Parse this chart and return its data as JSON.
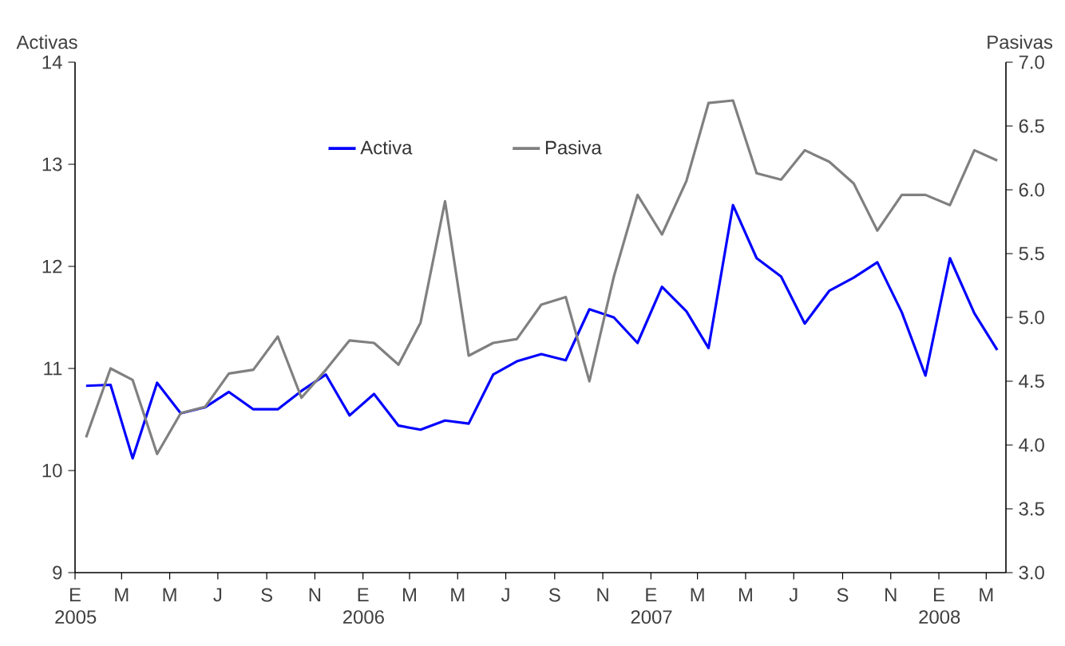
{
  "chart_data": {
    "type": "line",
    "ylabel": "Activas",
    "y2label": "Pasivas",
    "x": [
      "2005-01-15",
      "2005-02-15",
      "2005-03-15",
      "2005-04-15",
      "2005-05-15",
      "2005-06-15",
      "2005-07-15",
      "2005-08-15",
      "2005-09-15",
      "2005-10-15",
      "2005-11-15",
      "2005-12-15",
      "2006-01-15",
      "2006-02-15",
      "2006-03-15",
      "2006-04-15",
      "2006-05-15",
      "2006-06-15",
      "2006-07-15",
      "2006-08-15",
      "2006-09-15",
      "2006-10-15",
      "2006-11-15",
      "2006-12-15",
      "2007-01-15",
      "2007-02-15",
      "2007-03-15",
      "2007-04-15",
      "2007-05-15",
      "2007-06-15",
      "2007-07-15",
      "2007-08-15",
      "2007-09-15",
      "2007-10-15",
      "2007-11-15",
      "2007-12-15",
      "2008-01-15",
      "2008-02-15",
      "2008-03-15"
    ],
    "series": [
      {
        "name": "Activa",
        "color": "#0000ff",
        "values": [
          10.83,
          10.84,
          10.12,
          10.86,
          10.56,
          10.62,
          10.77,
          10.6,
          10.6,
          10.78,
          10.94,
          10.54,
          10.75,
          10.44,
          10.4,
          10.49,
          10.46,
          10.94,
          11.07,
          11.14,
          11.08,
          11.58,
          11.5,
          11.25,
          11.8,
          11.56,
          11.2,
          12.6,
          12.08,
          11.9,
          11.44,
          11.76,
          11.89,
          12.04,
          11.55,
          10.93,
          12.08,
          11.54,
          11.18
        ]
      },
      {
        "name": "Pasiva",
        "color": "#808080",
        "axis": "y2",
        "values": [
          4.06,
          4.6,
          4.51,
          3.93,
          4.25,
          4.3,
          4.56,
          4.59,
          4.85,
          4.37,
          4.59,
          4.82,
          4.8,
          4.63,
          4.96,
          5.91,
          4.7,
          4.8,
          4.83,
          5.1,
          5.16,
          4.5,
          5.32,
          5.96,
          5.65,
          6.07,
          6.68,
          6.7,
          6.13,
          6.08,
          6.31,
          6.22,
          6.05,
          5.68,
          5.96,
          5.96,
          5.88,
          6.31,
          6.23
        ]
      }
    ],
    "xlim": [
      "2005-01-01",
      "2008-03-26"
    ],
    "xticks": [
      {
        "value": "2005-01-01",
        "label": "E 2005"
      },
      {
        "value": "2005-03-01",
        "label": "M"
      },
      {
        "value": "2005-05-01",
        "label": "M"
      },
      {
        "value": "2005-07-01",
        "label": "J"
      },
      {
        "value": "2005-09-01",
        "label": "S"
      },
      {
        "value": "2005-11-01",
        "label": "N"
      },
      {
        "value": "2006-01-01",
        "label": "E 2006"
      },
      {
        "value": "2006-03-01",
        "label": "M"
      },
      {
        "value": "2006-05-01",
        "label": "M"
      },
      {
        "value": "2006-07-01",
        "label": "J"
      },
      {
        "value": "2006-09-01",
        "label": "S"
      },
      {
        "value": "2006-11-01",
        "label": "N"
      },
      {
        "value": "2007-01-01",
        "label": "E 2007"
      },
      {
        "value": "2007-03-01",
        "label": "M"
      },
      {
        "value": "2007-05-01",
        "label": "M"
      },
      {
        "value": "2007-07-01",
        "label": "J"
      },
      {
        "value": "2007-09-01",
        "label": "S"
      },
      {
        "value": "2007-11-01",
        "label": "N"
      },
      {
        "value": "2008-01-01",
        "label": "E 2008"
      },
      {
        "value": "2008-03-01",
        "label": "M"
      }
    ],
    "ylim": [
      9,
      14
    ],
    "yticks": [
      9,
      10,
      11,
      12,
      13,
      14
    ],
    "y2lim": [
      3,
      7
    ],
    "y2ticks": [
      {
        "value": 3,
        "label": "3.0"
      },
      {
        "value": 3.5,
        "label": "3.5"
      },
      {
        "value": 4,
        "label": "4.0"
      },
      {
        "value": 4.5,
        "label": "4.5"
      },
      {
        "value": 5,
        "label": "5.0"
      },
      {
        "value": 5.5,
        "label": "5.5"
      },
      {
        "value": 6,
        "label": "6.0"
      },
      {
        "value": 6.5,
        "label": "6.5"
      },
      {
        "value": 7,
        "label": "7.0"
      }
    ],
    "legend": "top",
    "grid": false,
    "marker": "none",
    "line_style": "solid"
  }
}
